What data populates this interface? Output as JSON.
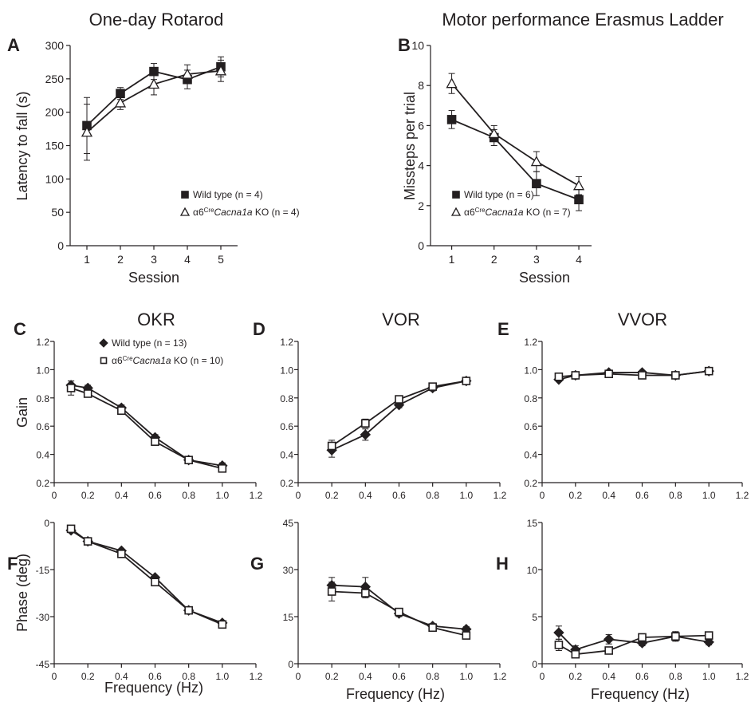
{
  "chart_data": [
    {
      "panel": "A",
      "type": "line",
      "title": "One-day Rotarod",
      "xlabel": "Session",
      "ylabel": "Latency to fall (s)",
      "xlim": [
        0.5,
        5.5
      ],
      "ylim": [
        0,
        300
      ],
      "xticks": [
        1,
        2,
        3,
        4,
        5
      ],
      "yticks": [
        0,
        50,
        100,
        150,
        200,
        250,
        300
      ],
      "legend": "bottom-right",
      "series": [
        {
          "name": "Wild type (n = 4)",
          "marker": "filled-square",
          "x": [
            1,
            2,
            3,
            4,
            5
          ],
          "y": [
            180,
            228,
            261,
            249,
            268
          ],
          "err": [
            42,
            9,
            12,
            14,
            15
          ]
        },
        {
          "name_prefix": "α6",
          "name_sup": "Cre",
          "name_italic": "Cacna1a",
          "name_suffix": " KO (n = 4)",
          "marker": "open-triangle",
          "x": [
            1,
            2,
            3,
            4,
            5
          ],
          "y": [
            170,
            214,
            242,
            257,
            262
          ],
          "err": [
            42,
            10,
            16,
            14,
            16
          ]
        }
      ]
    },
    {
      "panel": "B",
      "type": "line",
      "title": "Motor performance Erasmus Ladder",
      "xlabel": "Session",
      "ylabel": "Missteps per trial",
      "xlim": [
        0.5,
        4.3
      ],
      "ylim": [
        0,
        10
      ],
      "xticks": [
        1,
        2,
        3,
        4
      ],
      "yticks": [
        0,
        2,
        4,
        6,
        8,
        10
      ],
      "legend": "bottom-left",
      "series": [
        {
          "name": "Wild type (n = 6)",
          "marker": "filled-square",
          "x": [
            1,
            2,
            3,
            4
          ],
          "y": [
            6.3,
            5.4,
            3.1,
            2.3
          ],
          "err": [
            0.45,
            0.4,
            0.6,
            0.55
          ]
        },
        {
          "name_prefix": "α6",
          "name_sup": "Cre",
          "name_italic": "Cacna1a",
          "name_suffix": " KO (n = 7)",
          "marker": "open-triangle",
          "x": [
            1,
            2,
            3,
            4
          ],
          "y": [
            8.1,
            5.6,
            4.2,
            3.0
          ],
          "err": [
            0.5,
            0.4,
            0.5,
            0.45
          ]
        }
      ]
    },
    {
      "panel": "C",
      "type": "line",
      "title": "OKR",
      "xlabel": "",
      "ylabel": "Gain",
      "xlim": [
        0,
        1.2
      ],
      "ylim": [
        0.2,
        1.2
      ],
      "xticks": [
        "0",
        "0.2",
        "0.4",
        "0.6",
        "0.8",
        "1.0",
        "1.2"
      ],
      "yticks": [
        "0.2",
        "0.4",
        "0.6",
        "0.8",
        "1.0",
        "1.2"
      ],
      "legend": "top-right",
      "series": [
        {
          "name": "Wild type (n = 13)",
          "marker": "filled-diamond",
          "x": [
            0.1,
            0.2,
            0.4,
            0.6,
            0.8,
            1.0
          ],
          "y": [
            0.89,
            0.87,
            0.73,
            0.52,
            0.36,
            0.32
          ],
          "err": [
            0.03,
            0.02,
            0.02,
            0.02,
            0.02,
            0.02
          ]
        },
        {
          "name_prefix": "α6",
          "name_sup": "Cre",
          "name_italic": "Cacna1a",
          "name_suffix": " KO (n = 10)",
          "marker": "open-square",
          "x": [
            0.1,
            0.2,
            0.4,
            0.6,
            0.8,
            1.0
          ],
          "y": [
            0.87,
            0.83,
            0.71,
            0.49,
            0.36,
            0.3
          ],
          "err": [
            0.05,
            0.02,
            0.02,
            0.02,
            0.02,
            0.02
          ]
        }
      ]
    },
    {
      "panel": "D",
      "type": "line",
      "title": "VOR",
      "xlabel": "",
      "ylabel": "",
      "xlim": [
        0,
        1.2
      ],
      "ylim": [
        0.2,
        1.2
      ],
      "xticks": [
        "0",
        "0.2",
        "0.4",
        "0.6",
        "0.8",
        "1.0",
        "1.2"
      ],
      "yticks": [
        "0.2",
        "0.4",
        "0.6",
        "0.8",
        "1.0",
        "1.2"
      ],
      "series": [
        {
          "marker": "filled-diamond",
          "x": [
            0.2,
            0.4,
            0.6,
            0.8,
            1.0
          ],
          "y": [
            0.43,
            0.54,
            0.75,
            0.87,
            0.92
          ],
          "err": [
            0.05,
            0.04,
            0.02,
            0.02,
            0.02
          ]
        },
        {
          "marker": "open-square",
          "x": [
            0.2,
            0.4,
            0.6,
            0.8,
            1.0
          ],
          "y": [
            0.46,
            0.62,
            0.79,
            0.88,
            0.92
          ],
          "err": [
            0.04,
            0.03,
            0.02,
            0.02,
            0.02
          ]
        }
      ]
    },
    {
      "panel": "E",
      "type": "line",
      "title": "VVOR",
      "xlabel": "",
      "ylabel": "",
      "xlim": [
        0,
        1.2
      ],
      "ylim": [
        0.2,
        1.2
      ],
      "xticks": [
        "0",
        "0.2",
        "0.4",
        "0.6",
        "0.8",
        "1.0",
        "1.2"
      ],
      "yticks": [
        "0.2",
        "0.4",
        "0.6",
        "0.8",
        "1.0",
        "1.2"
      ],
      "series": [
        {
          "marker": "filled-diamond",
          "x": [
            0.1,
            0.2,
            0.4,
            0.6,
            0.8,
            1.0
          ],
          "y": [
            0.93,
            0.96,
            0.98,
            0.98,
            0.96,
            0.99
          ],
          "err": [
            0.01,
            0.01,
            0.01,
            0.01,
            0.01,
            0.01
          ]
        },
        {
          "marker": "open-square",
          "x": [
            0.1,
            0.2,
            0.4,
            0.6,
            0.8,
            1.0
          ],
          "y": [
            0.95,
            0.96,
            0.97,
            0.96,
            0.96,
            0.99
          ],
          "err": [
            0.01,
            0.01,
            0.01,
            0.01,
            0.01,
            0.01
          ]
        }
      ]
    },
    {
      "panel": "F",
      "type": "line",
      "title": "",
      "xlabel": "Frequency (Hz)",
      "ylabel": "Phase (deg)",
      "xlim": [
        0,
        1.2
      ],
      "ylim": [
        -45,
        0
      ],
      "xticks": [
        "0",
        "0.2",
        "0.4",
        "0.6",
        "0.8",
        "1.0",
        "1.2"
      ],
      "yticks": [
        "0",
        "-15",
        "-30",
        "-45"
      ],
      "series": [
        {
          "marker": "filled-diamond",
          "x": [
            0.1,
            0.2,
            0.4,
            0.6,
            0.8,
            1.0
          ],
          "y": [
            -2.5,
            -6,
            -9,
            -17.5,
            -28,
            -32
          ],
          "err": [
            0.4,
            0.4,
            0.4,
            0.5,
            0.5,
            0.5
          ]
        },
        {
          "marker": "open-square",
          "x": [
            0.1,
            0.2,
            0.4,
            0.6,
            0.8,
            1.0
          ],
          "y": [
            -2,
            -6,
            -10,
            -19,
            -28,
            -32.5
          ],
          "err": [
            0.4,
            0.4,
            0.4,
            0.5,
            0.5,
            0.5
          ]
        }
      ]
    },
    {
      "panel": "G",
      "type": "line",
      "title": "",
      "xlabel": "Frequency (Hz)",
      "ylabel": "",
      "xlim": [
        0,
        1.2
      ],
      "ylim": [
        0,
        45
      ],
      "xticks": [
        "0",
        "0.2",
        "0.4",
        "0.6",
        "0.8",
        "1.0",
        "1.2"
      ],
      "yticks": [
        "0",
        "15",
        "30",
        "45"
      ],
      "series": [
        {
          "marker": "filled-diamond",
          "x": [
            0.2,
            0.4,
            0.6,
            0.8,
            1.0
          ],
          "y": [
            25,
            24.5,
            16,
            12,
            11
          ],
          "err": [
            2.5,
            3,
            1,
            0.8,
            0.8
          ]
        },
        {
          "marker": "open-square",
          "x": [
            0.2,
            0.4,
            0.6,
            0.8,
            1.0
          ],
          "y": [
            23,
            22.5,
            16.5,
            11.5,
            9
          ],
          "err": [
            3,
            1.5,
            1,
            0.8,
            0.8
          ]
        }
      ]
    },
    {
      "panel": "H",
      "type": "line",
      "title": "",
      "xlabel": "Frequency (Hz)",
      "ylabel": "",
      "xlim": [
        0,
        1.2
      ],
      "ylim": [
        0,
        15
      ],
      "xticks": [
        "0",
        "0.2",
        "0.4",
        "0.6",
        "0.8",
        "1.0",
        "1.2"
      ],
      "yticks": [
        "0",
        "5",
        "10",
        "15"
      ],
      "series": [
        {
          "marker": "filled-diamond",
          "x": [
            0.1,
            0.2,
            0.4,
            0.6,
            0.8,
            1.0
          ],
          "y": [
            3.3,
            1.5,
            2.6,
            2.2,
            2.9,
            2.3
          ],
          "err": [
            0.7,
            0.4,
            0.5,
            0.3,
            0.5,
            0.3
          ]
        },
        {
          "marker": "open-square",
          "x": [
            0.1,
            0.2,
            0.4,
            0.6,
            0.8,
            1.0
          ],
          "y": [
            2.0,
            1.0,
            1.4,
            2.8,
            2.9,
            3.0
          ],
          "err": [
            0.6,
            0.2,
            0.3,
            0.3,
            0.5,
            0.3
          ]
        }
      ]
    }
  ]
}
